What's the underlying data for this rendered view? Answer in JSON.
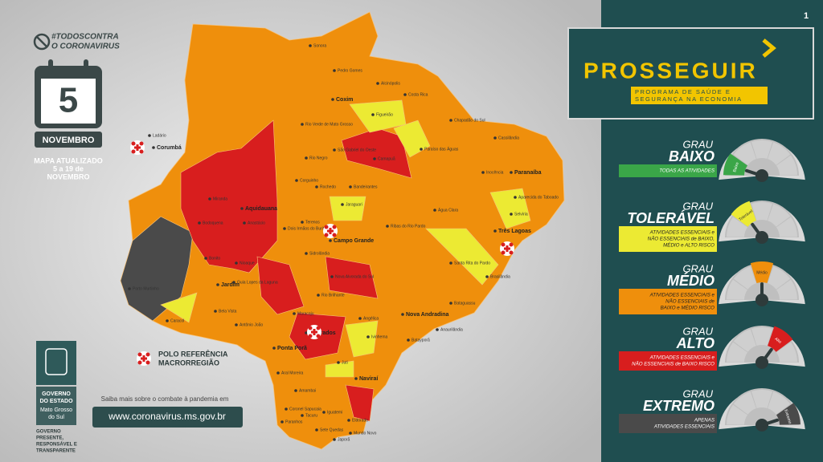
{
  "page_number": "1",
  "campaign": {
    "line1": "#TODOSCONTRA",
    "line2": "O CORONAVIRUS"
  },
  "calendar": {
    "day": "5",
    "month": "NOVEMBRO"
  },
  "update_note": [
    "MAPA ATUALIZADO",
    "5 a 19 de",
    "NOVEMBRO"
  ],
  "legend": {
    "line1": "POLO REFERÊNCIA",
    "line2": "MACRORREGIÃO"
  },
  "government": {
    "line1": "GOVERNO",
    "line2": "DO ESTADO",
    "line3": "Mato Grosso",
    "line4": "do Sul",
    "motto": [
      "GOVERNO",
      "PRESENTE,",
      "RESPONSÁVEL E",
      "TRANSPARENTE"
    ]
  },
  "footer": {
    "prompt": "Saiba mais sobre o combate à pandemia em",
    "url": "www.coronavirus.ms.gov.br"
  },
  "program": {
    "title": "PROSSEGUIR",
    "subtitle1": "PROGRAMA DE SAÚDE E",
    "subtitle2": "SEGURANÇA NA ECONOMIA"
  },
  "levels": [
    {
      "grau": "GRAU",
      "name": "BAIXO",
      "description": [
        "TODAS AS ATIVIDADES"
      ],
      "gauge_label": "Baixo"
    },
    {
      "grau": "GRAU",
      "name": "TOLERÁVEL",
      "description": [
        "ATIVIDADES ESSENCIAIS e",
        "NÃO ESSENCIAIS de BAIXO,",
        "MÉDIO e ALTO RISCO"
      ],
      "gauge_label": "Tolerável"
    },
    {
      "grau": "GRAU",
      "name": "MÉDIO",
      "description": [
        "ATIVIDADES ESSENCIAIS e",
        "NÃO ESSENCIAIS de",
        "BAIXO e MÉDIO RISCO"
      ],
      "gauge_label": "Médio"
    },
    {
      "grau": "GRAU",
      "name": "ALTO",
      "description": [
        "ATIVIDADES ESSENCIAIS e",
        "NÃO ESSENCIAIS de BAIXO RISCO"
      ],
      "gauge_label": "Alto"
    },
    {
      "grau": "GRAU",
      "name": "EXTREMO",
      "description": [
        "APENAS",
        "ATIVIDADES ESSENCIAIS"
      ],
      "gauge_label": "Extremo"
    }
  ],
  "cities": [
    "Sonora",
    "Pedro Gomes",
    "Alcinópolis",
    "Coxim",
    "Costa Rica",
    "Figueirão",
    "Chapadão do Sul",
    "Cassilândia",
    "Paraíso das Águas",
    "Ladário",
    "Corumbá",
    "Rio Verde de Mato Grosso",
    "São Gabriel do Oeste",
    "Rio Negro",
    "Camapuã",
    "Inocência",
    "Paranaíba",
    "Aparecida do Taboado",
    "Corguinho",
    "Rochedo",
    "Bandeirantes",
    "Jaraguari",
    "Selvíria",
    "Água Clara",
    "Três Lagoas",
    "Aquidauana",
    "Miranda",
    "Anastácio",
    "Dois Irmãos do Buriti",
    "Terenos",
    "Campo Grande",
    "Ribas do Rio Pardo",
    "Bodoquena",
    "Bonito",
    "Nioaque",
    "Sidrolândia",
    "Santa Rita do Pardo",
    "Brasilândia",
    "Jardim",
    "Guia Lopes da Laguna",
    "Nova Alvorada do Sul",
    "Rio Brilhante",
    "Bataguassu",
    "Caracol",
    "Bela Vista",
    "Antônio João",
    "Maracaju",
    "Nova Andradina",
    "Anaurilândia",
    "Dourados",
    "Angélica",
    "Ivinhema",
    "Batayporã",
    "Ponta Porã",
    "Juti",
    "Naviraí",
    "Aral Moreira",
    "Amambai",
    "Coronel Sapucaia",
    "Tacuru",
    "Iguatemi",
    "Eldorado",
    "Paranhos",
    "Sete Quedas",
    "Japorã",
    "Mundo Novo",
    "Porto Murtinho"
  ]
}
